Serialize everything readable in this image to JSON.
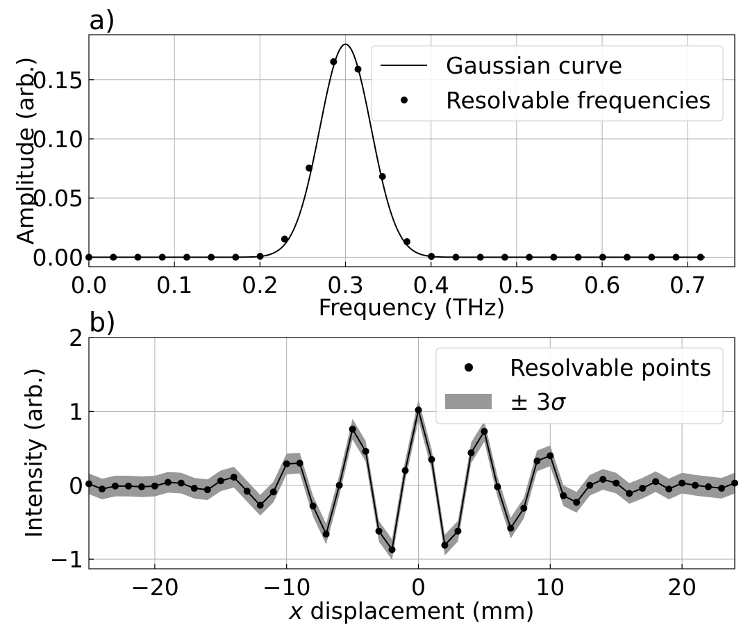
{
  "chart_data": [
    {
      "type": "line",
      "panel_label": "a)",
      "xlabel": "Frequency (THz)",
      "ylabel": "Amplitude (arb.)",
      "xlim": [
        0.0,
        0.755
      ],
      "ylim": [
        -0.008,
        0.188
      ],
      "xticks": [
        0.0,
        0.1,
        0.2,
        0.3,
        0.4,
        0.5,
        0.6,
        0.7
      ],
      "xtick_labels": [
        "0.0",
        "0.1",
        "0.2",
        "0.3",
        "0.4",
        "0.5",
        "0.6",
        "0.7"
      ],
      "yticks": [
        0.0,
        0.05,
        0.1,
        0.15
      ],
      "ytick_labels": [
        "0.00",
        "0.05",
        "0.10",
        "0.15"
      ],
      "grid": true,
      "legend_position": "top-right",
      "legend": [
        "Gaussian curve",
        "Resolvable frequencies"
      ],
      "gaussian": {
        "name": "Gaussian curve",
        "amplitude": 0.18,
        "center": 0.3,
        "sigma": 0.03,
        "x_range": [
          0.0,
          0.72
        ]
      },
      "points": {
        "name": "Resolvable frequencies",
        "x": [
          0.0,
          0.0286,
          0.0572,
          0.0858,
          0.1144,
          0.143,
          0.1716,
          0.2002,
          0.2288,
          0.2574,
          0.286,
          0.3146,
          0.3432,
          0.3718,
          0.4004,
          0.429,
          0.4576,
          0.4862,
          0.5148,
          0.5434,
          0.572,
          0.6006,
          0.6292,
          0.6578,
          0.6864,
          0.715
        ],
        "y": [
          0.0,
          0.0,
          0.0,
          0.0,
          0.0,
          0.0,
          0.0,
          0.0008,
          0.0153,
          0.0754,
          0.1652,
          0.1589,
          0.0682,
          0.0131,
          0.0007,
          0.0,
          0.0,
          0.0,
          0.0,
          0.0,
          0.0,
          0.0,
          0.0,
          0.0,
          0.0,
          0.0
        ]
      }
    },
    {
      "type": "line",
      "panel_label": "b)",
      "xlabel_italic": "x",
      "xlabel_rest": " displacement (mm)",
      "ylabel": "Intensity (arb.)",
      "xlim": [
        -25,
        24
      ],
      "ylim": [
        -1.13,
        2.0
      ],
      "xticks": [
        -20,
        -10,
        0,
        10,
        20
      ],
      "xtick_labels": [
        "−20",
        "−10",
        "0",
        "10",
        "20"
      ],
      "yticks": [
        -1,
        0,
        1,
        2
      ],
      "ytick_labels": [
        "−1",
        "0",
        "1",
        "2"
      ],
      "grid": true,
      "legend_position": "top-right",
      "legend_points_label": "Resolvable points",
      "legend_band_prefix": "± 3",
      "legend_band_symbol": "σ",
      "band_halfwidth": 0.14,
      "colors": {
        "band": "#999999",
        "line": "#000000"
      },
      "points": {
        "name": "Resolvable points",
        "x": [
          -25,
          -24,
          -23,
          -22,
          -21,
          -20,
          -19,
          -18,
          -17,
          -16,
          -15,
          -14,
          -13,
          -12,
          -11,
          -10,
          -9,
          -8,
          -7,
          -6,
          -5,
          -4,
          -3,
          -2,
          -1,
          0,
          1,
          2,
          3,
          4,
          5,
          6,
          7,
          8,
          9,
          10,
          11,
          12,
          13,
          14,
          15,
          16,
          17,
          18,
          19,
          20,
          21,
          22,
          23,
          24
        ],
        "y": [
          0.02,
          -0.05,
          -0.01,
          -0.01,
          -0.02,
          -0.01,
          0.04,
          0.03,
          -0.04,
          -0.06,
          0.06,
          0.11,
          -0.08,
          -0.27,
          -0.09,
          0.29,
          0.3,
          -0.28,
          -0.66,
          0.0,
          0.76,
          0.46,
          -0.62,
          -0.87,
          0.2,
          1.02,
          0.35,
          -0.81,
          -0.62,
          0.44,
          0.73,
          -0.02,
          -0.58,
          -0.31,
          0.33,
          0.4,
          -0.14,
          -0.23,
          0.0,
          0.08,
          0.03,
          -0.11,
          -0.04,
          0.05,
          -0.05,
          0.03,
          0.0,
          -0.02,
          -0.04,
          0.03
        ]
      }
    }
  ]
}
